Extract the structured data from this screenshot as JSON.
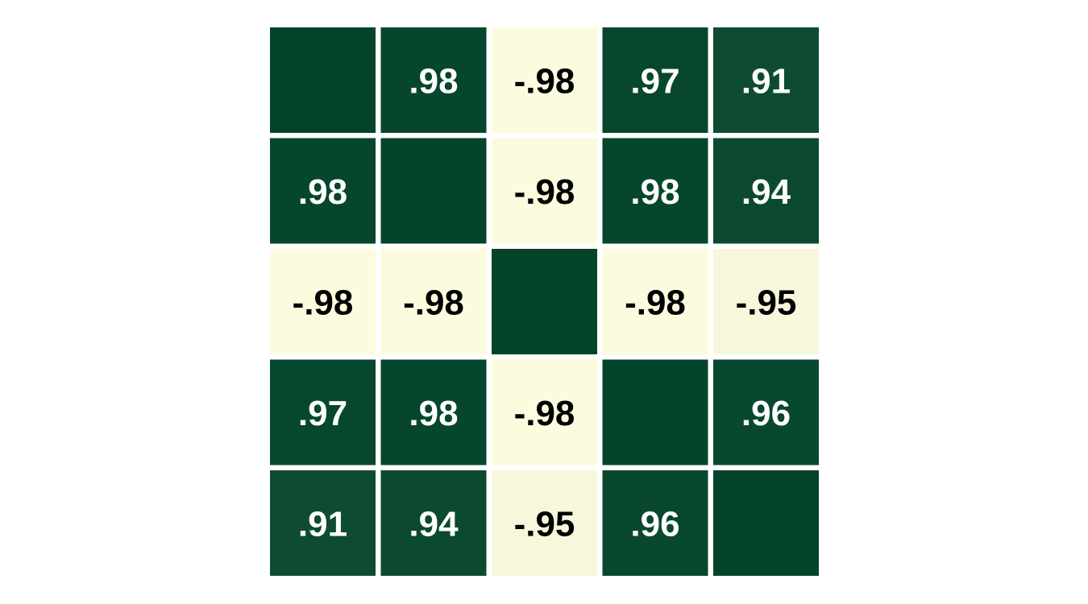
{
  "chart_data": {
    "type": "heatmap",
    "title": "",
    "xlabel": "",
    "ylabel": "",
    "x_categories": [],
    "y_categories": [],
    "value_range": [
      -1,
      1
    ],
    "colors": {
      "low": "#fdfde0",
      "high": "#03442a",
      "text_on_dark": "#ffffff",
      "text_on_light": "#000000"
    },
    "values": [
      [
        1.0,
        0.98,
        -0.98,
        0.97,
        0.91
      ],
      [
        0.98,
        1.0,
        -0.98,
        0.98,
        0.94
      ],
      [
        -0.98,
        -0.98,
        1.0,
        -0.98,
        -0.95
      ],
      [
        0.97,
        0.98,
        -0.98,
        1.0,
        0.96
      ],
      [
        0.91,
        0.94,
        -0.95,
        0.96,
        1.0
      ]
    ],
    "labels": [
      [
        "",
        ".98",
        "-.98",
        ".97",
        ".91"
      ],
      [
        ".98",
        "",
        "-.98",
        ".98",
        ".94"
      ],
      [
        "-.98",
        "-.98",
        "",
        "-.98",
        "-.95"
      ],
      [
        ".97",
        ".98",
        "-.98",
        "",
        ".96"
      ],
      [
        ".91",
        ".94",
        "-.95",
        ".96",
        ""
      ]
    ]
  }
}
